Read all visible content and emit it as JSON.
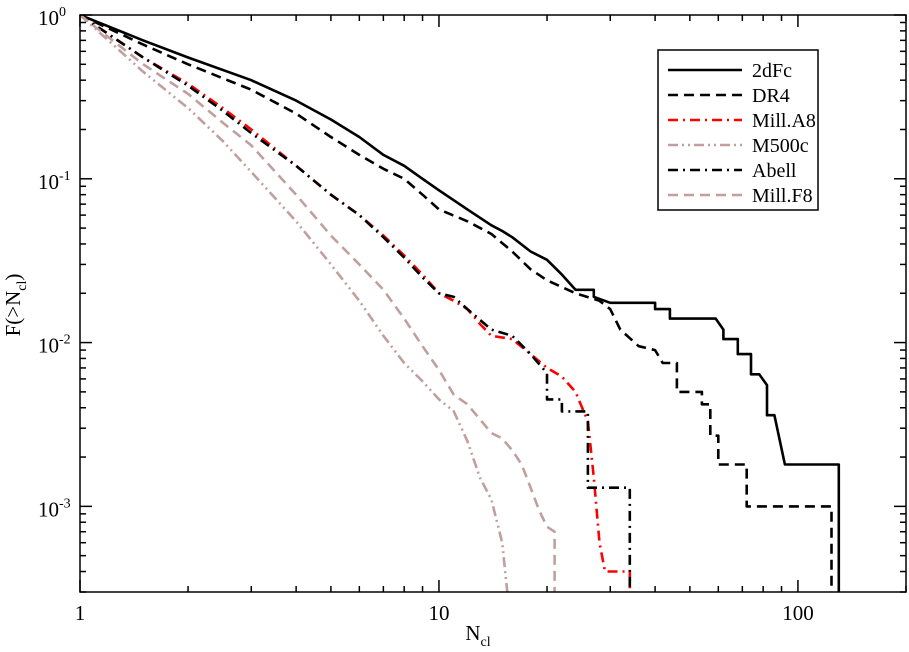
{
  "chart_data": {
    "type": "line",
    "title": "",
    "xscale": "log",
    "yscale": "log",
    "xlim": [
      1,
      200
    ],
    "ylim": [
      0.0003,
      1
    ],
    "xlabel": {
      "main": "N",
      "sub": "cl"
    },
    "ylabel": {
      "pre": "F(>N",
      "sub": "cl",
      "post": ")"
    },
    "xticks": [
      {
        "value": 1,
        "label": "1"
      },
      {
        "value": 10,
        "label": "10"
      },
      {
        "value": 100,
        "label": "100"
      }
    ],
    "yticks": [
      {
        "value": 1,
        "base": "10",
        "exp": "0"
      },
      {
        "value": 0.1,
        "base": "10",
        "exp": "-1"
      },
      {
        "value": 0.01,
        "base": "10",
        "exp": "-2"
      },
      {
        "value": 0.001,
        "base": "10",
        "exp": "-3"
      }
    ],
    "legend_position": "top-right",
    "series": [
      {
        "name": "2dFc",
        "color": "#000000",
        "dash": "solid",
        "points": [
          [
            1,
            1
          ],
          [
            1.5,
            0.7
          ],
          [
            2,
            0.55
          ],
          [
            3,
            0.4
          ],
          [
            4,
            0.3
          ],
          [
            5,
            0.23
          ],
          [
            6,
            0.18
          ],
          [
            7,
            0.14
          ],
          [
            8,
            0.12
          ],
          [
            9,
            0.1
          ],
          [
            10,
            0.085
          ],
          [
            12,
            0.065
          ],
          [
            14,
            0.052
          ],
          [
            15,
            0.048
          ],
          [
            16,
            0.044
          ],
          [
            18,
            0.036
          ],
          [
            20,
            0.032
          ],
          [
            22,
            0.026
          ],
          [
            24,
            0.021
          ],
          [
            27,
            0.021
          ],
          [
            27,
            0.019
          ],
          [
            30,
            0.0175
          ],
          [
            40,
            0.0175
          ],
          [
            40,
            0.016
          ],
          [
            44,
            0.016
          ],
          [
            44,
            0.014
          ],
          [
            59,
            0.014
          ],
          [
            62,
            0.012
          ],
          [
            62,
            0.0105
          ],
          [
            68,
            0.0105
          ],
          [
            68,
            0.0085
          ],
          [
            74,
            0.0085
          ],
          [
            74,
            0.0064
          ],
          [
            78,
            0.0064
          ],
          [
            82,
            0.0055
          ],
          [
            82,
            0.0036
          ],
          [
            86,
            0.0036
          ],
          [
            92,
            0.0018
          ],
          [
            130,
            0.0018
          ],
          [
            130,
            0.0003
          ]
        ]
      },
      {
        "name": "DR4",
        "color": "#000000",
        "dash": "dashed",
        "points": [
          [
            1,
            1
          ],
          [
            1.5,
            0.66
          ],
          [
            2,
            0.5
          ],
          [
            3,
            0.35
          ],
          [
            4,
            0.25
          ],
          [
            5,
            0.18
          ],
          [
            6,
            0.14
          ],
          [
            7,
            0.115
          ],
          [
            8,
            0.1
          ],
          [
            9,
            0.08
          ],
          [
            10,
            0.065
          ],
          [
            12,
            0.055
          ],
          [
            14,
            0.046
          ],
          [
            16,
            0.036
          ],
          [
            18,
            0.028
          ],
          [
            20,
            0.024
          ],
          [
            24,
            0.02
          ],
          [
            28,
            0.018
          ],
          [
            30,
            0.016
          ],
          [
            32,
            0.012
          ],
          [
            36,
            0.0095
          ],
          [
            40,
            0.009
          ],
          [
            42,
            0.0075
          ],
          [
            42,
            0.0075
          ],
          [
            46,
            0.0075
          ],
          [
            46,
            0.005
          ],
          [
            54,
            0.005
          ],
          [
            54,
            0.0042
          ],
          [
            57,
            0.0042
          ],
          [
            57,
            0.0027
          ],
          [
            60,
            0.0027
          ],
          [
            60,
            0.0018
          ],
          [
            72,
            0.0018
          ],
          [
            72,
            0.001
          ],
          [
            124,
            0.001
          ],
          [
            124,
            0.0003
          ]
        ]
      },
      {
        "name": "Mill.A8",
        "color": "#ff0000",
        "dash": "dashdot",
        "points": [
          [
            1,
            1
          ],
          [
            1.5,
            0.55
          ],
          [
            2,
            0.38
          ],
          [
            2.5,
            0.27
          ],
          [
            3,
            0.2
          ],
          [
            4,
            0.12
          ],
          [
            5,
            0.08
          ],
          [
            6,
            0.06
          ],
          [
            7,
            0.045
          ],
          [
            8,
            0.034
          ],
          [
            9,
            0.026
          ],
          [
            10,
            0.02
          ],
          [
            11,
            0.018
          ],
          [
            12,
            0.016
          ],
          [
            13,
            0.013
          ],
          [
            14,
            0.011
          ],
          [
            16,
            0.0105
          ],
          [
            18,
            0.0085
          ],
          [
            20,
            0.007
          ],
          [
            22,
            0.0062
          ],
          [
            24,
            0.005
          ],
          [
            26,
            0.0033
          ],
          [
            27,
            0.0015
          ],
          [
            28,
            0.0006
          ],
          [
            29,
            0.0004
          ],
          [
            34,
            0.0004
          ],
          [
            34,
            0.0003
          ]
        ]
      },
      {
        "name": "M500c",
        "color": "#c0a09e",
        "dash": "dashdotdot",
        "points": [
          [
            1,
            1
          ],
          [
            1.5,
            0.45
          ],
          [
            2,
            0.27
          ],
          [
            2.5,
            0.17
          ],
          [
            3,
            0.11
          ],
          [
            4,
            0.055
          ],
          [
            5,
            0.03
          ],
          [
            6,
            0.018
          ],
          [
            7,
            0.011
          ],
          [
            8,
            0.0075
          ],
          [
            9,
            0.0058
          ],
          [
            10,
            0.0045
          ],
          [
            11,
            0.0038
          ],
          [
            12,
            0.0025
          ],
          [
            13,
            0.0015
          ],
          [
            14,
            0.0011
          ],
          [
            15,
            0.0006
          ],
          [
            15.5,
            0.0003
          ]
        ]
      },
      {
        "name": "Abell",
        "color": "#000000",
        "dash": "dashdot",
        "points": [
          [
            1,
            1
          ],
          [
            1.5,
            0.55
          ],
          [
            2,
            0.37
          ],
          [
            2.5,
            0.26
          ],
          [
            3,
            0.19
          ],
          [
            4,
            0.12
          ],
          [
            5,
            0.08
          ],
          [
            6,
            0.06
          ],
          [
            7,
            0.044
          ],
          [
            8,
            0.033
          ],
          [
            9,
            0.025
          ],
          [
            10,
            0.02
          ],
          [
            11,
            0.019
          ],
          [
            12,
            0.016
          ],
          [
            14,
            0.012
          ],
          [
            16,
            0.011
          ],
          [
            18,
            0.0085
          ],
          [
            20,
            0.0065
          ],
          [
            20,
            0.0045
          ],
          [
            22,
            0.0045
          ],
          [
            22,
            0.0038
          ],
          [
            26,
            0.0038
          ],
          [
            26,
            0.0013
          ],
          [
            34,
            0.0013
          ],
          [
            34,
            0.0003
          ]
        ]
      },
      {
        "name": "Mill.F8",
        "color": "#c0a09e",
        "dash": "dashed",
        "points": [
          [
            1,
            1
          ],
          [
            1.5,
            0.5
          ],
          [
            2,
            0.33
          ],
          [
            2.5,
            0.22
          ],
          [
            3,
            0.16
          ],
          [
            4,
            0.08
          ],
          [
            5,
            0.045
          ],
          [
            6,
            0.03
          ],
          [
            7,
            0.021
          ],
          [
            8,
            0.014
          ],
          [
            9,
            0.0095
          ],
          [
            10,
            0.0068
          ],
          [
            11,
            0.0048
          ],
          [
            12,
            0.0042
          ],
          [
            13,
            0.0034
          ],
          [
            14,
            0.0028
          ],
          [
            15,
            0.0026
          ],
          [
            16,
            0.0022
          ],
          [
            17,
            0.0018
          ],
          [
            18,
            0.0013
          ],
          [
            19,
            0.00095
          ],
          [
            20,
            0.00075
          ],
          [
            21,
            0.0007
          ],
          [
            21,
            0.0003
          ]
        ]
      }
    ]
  }
}
